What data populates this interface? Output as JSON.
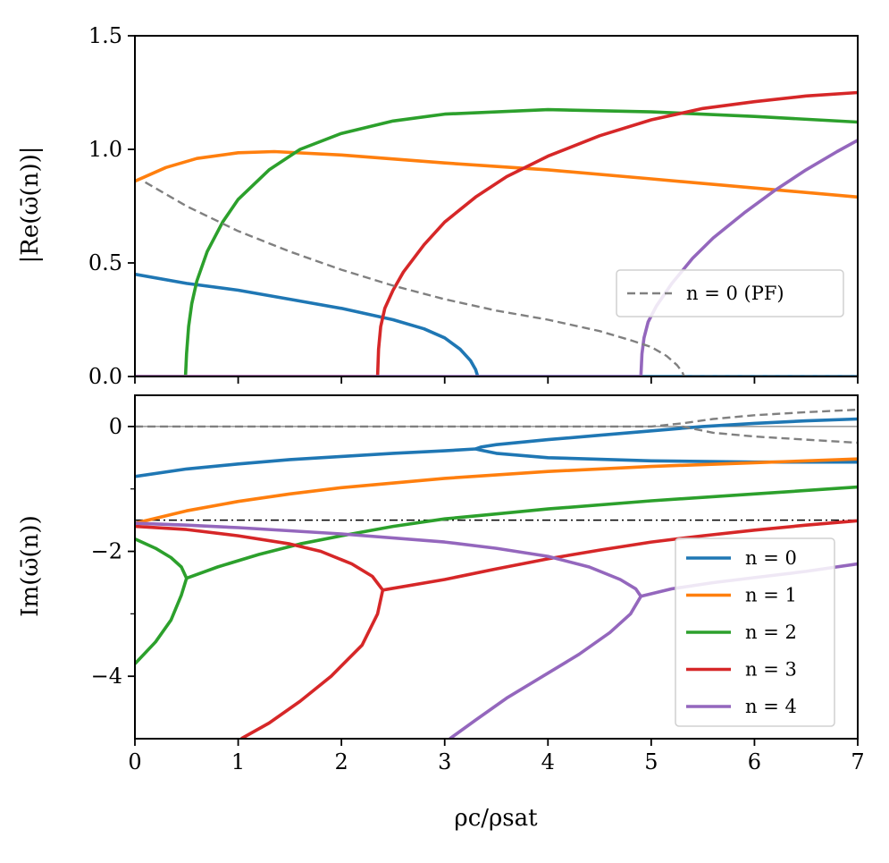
{
  "chart_data": [
    {
      "type": "line",
      "panel": "top",
      "title": "",
      "xlabel": "",
      "ylabel": "|Re(ω̄(n))|",
      "xlim": [
        0,
        7
      ],
      "ylim": [
        0,
        1.5
      ],
      "xticks": [
        0,
        1,
        2,
        3,
        4,
        5,
        6,
        7
      ],
      "yticks": [
        0.0,
        0.5,
        1.0,
        1.5
      ],
      "ytick_labels": [
        "0.0",
        "0.5",
        "1.0",
        "1.5"
      ],
      "grid": false,
      "legend": {
        "placement": "right",
        "entries": [
          "n = 0 (PF)"
        ]
      },
      "series": [
        {
          "color": "#1f77b4",
          "style": "solid",
          "x": [
            0,
            0.5,
            1.0,
            1.5,
            2.0,
            2.5,
            2.8,
            3.0,
            3.15,
            3.25,
            3.3,
            3.32,
            3.35,
            4,
            5,
            6,
            7
          ],
          "y": [
            0.45,
            0.41,
            0.38,
            0.34,
            0.3,
            0.25,
            0.21,
            0.17,
            0.12,
            0.07,
            0.03,
            0.0,
            0.0,
            0.0,
            0.0,
            0.0,
            0.0
          ]
        },
        {
          "color": "#ff7f0e",
          "style": "solid",
          "x": [
            0,
            0.3,
            0.6,
            1.0,
            1.35,
            2.0,
            3.0,
            4.0,
            5.0,
            6.0,
            7.0
          ],
          "y": [
            0.86,
            0.92,
            0.96,
            0.985,
            0.99,
            0.975,
            0.94,
            0.91,
            0.87,
            0.83,
            0.79
          ]
        },
        {
          "color": "#2ca02c",
          "style": "solid",
          "x": [
            0,
            0.49,
            0.5,
            0.52,
            0.55,
            0.6,
            0.7,
            0.85,
            1.0,
            1.3,
            1.6,
            2.0,
            2.5,
            3.0,
            4.0,
            5.0,
            6.0,
            7.0
          ],
          "y": [
            0.0,
            0.0,
            0.1,
            0.22,
            0.32,
            0.42,
            0.55,
            0.68,
            0.78,
            0.91,
            1.0,
            1.07,
            1.125,
            1.155,
            1.175,
            1.165,
            1.145,
            1.12
          ]
        },
        {
          "color": "#d62728",
          "style": "solid",
          "x": [
            0,
            2.35,
            2.36,
            2.38,
            2.42,
            2.5,
            2.6,
            2.8,
            3.0,
            3.3,
            3.6,
            4.0,
            4.5,
            5.0,
            5.5,
            6.0,
            6.5,
            7.0
          ],
          "y": [
            0.0,
            0.0,
            0.12,
            0.22,
            0.3,
            0.38,
            0.46,
            0.58,
            0.68,
            0.79,
            0.88,
            0.97,
            1.06,
            1.13,
            1.18,
            1.21,
            1.235,
            1.25
          ]
        },
        {
          "color": "#9467bd",
          "style": "solid",
          "x": [
            0,
            4.9,
            4.91,
            4.93,
            4.97,
            5.05,
            5.2,
            5.4,
            5.6,
            5.9,
            6.2,
            6.5,
            6.8,
            7.0
          ],
          "y": [
            0.0,
            0.0,
            0.1,
            0.17,
            0.24,
            0.31,
            0.41,
            0.52,
            0.61,
            0.72,
            0.82,
            0.91,
            0.99,
            1.04
          ]
        },
        {
          "name": "n = 0 (PF)",
          "color": "#808080",
          "style": "dashed",
          "x": [
            0.1,
            0.5,
            1.0,
            1.5,
            2.0,
            2.5,
            3.0,
            3.5,
            4.0,
            4.5,
            4.8,
            5.0,
            5.15,
            5.25,
            5.3,
            5.32,
            5.5,
            7.0
          ],
          "y": [
            0.855,
            0.75,
            0.64,
            0.55,
            0.47,
            0.4,
            0.34,
            0.29,
            0.25,
            0.2,
            0.16,
            0.13,
            0.09,
            0.05,
            0.02,
            0.0,
            0.0,
            0.0
          ]
        }
      ]
    },
    {
      "type": "line",
      "panel": "bottom",
      "title": "",
      "xlabel": "ρc/ρsat",
      "ylabel": "Im(ω̄(n))",
      "xlim": [
        0,
        7
      ],
      "ylim": [
        -5,
        0.5
      ],
      "xticks": [
        0,
        1,
        2,
        3,
        4,
        5,
        6,
        7
      ],
      "yticks": [
        0,
        -2,
        -4
      ],
      "ytick_labels": [
        "0",
        "−2",
        "−4"
      ],
      "grid": false,
      "legend": {
        "placement": "lower right",
        "entries": [
          "n = 0",
          "n = 1",
          "n = 2",
          "n = 3",
          "n = 4"
        ]
      },
      "reference_lines": [
        {
          "y": 0,
          "color": "#808080",
          "style": "solid"
        },
        {
          "y": -1.5,
          "color": "#000000",
          "style": "dashdot"
        }
      ],
      "series": [
        {
          "name": "n = 0",
          "color": "#1f77b4",
          "style": "solid",
          "x": [
            0,
            0.5,
            1.0,
            1.5,
            2.0,
            2.5,
            3.0,
            3.3,
            3.35,
            3.5,
            4.0,
            5.0,
            6.0,
            7.0
          ],
          "y": [
            -0.8,
            -0.68,
            -0.6,
            -0.53,
            -0.48,
            -0.43,
            -0.39,
            -0.36,
            -0.38,
            -0.43,
            -0.5,
            -0.55,
            -0.57,
            -0.57
          ]
        },
        {
          "color": "#1f77b4",
          "style": "solid",
          "x": [
            3.3,
            3.35,
            3.5,
            4.0,
            4.5,
            5.0,
            5.5,
            6.0,
            6.5,
            7.0
          ],
          "y": [
            -0.36,
            -0.33,
            -0.29,
            -0.21,
            -0.14,
            -0.07,
            0.0,
            0.05,
            0.09,
            0.12
          ]
        },
        {
          "name": "n = 1",
          "color": "#ff7f0e",
          "style": "solid",
          "x": [
            0,
            0.5,
            1.0,
            1.5,
            2.0,
            3.0,
            4.0,
            5.0,
            6.0,
            7.0
          ],
          "y": [
            -1.55,
            -1.35,
            -1.2,
            -1.08,
            -0.98,
            -0.83,
            -0.72,
            -0.64,
            -0.58,
            -0.52
          ]
        },
        {
          "name": "n = 2",
          "color": "#2ca02c",
          "style": "solid",
          "x": [
            0,
            0.2,
            0.35,
            0.45,
            0.5,
            0.45,
            0.35,
            0.2,
            0.0
          ],
          "y": [
            -1.8,
            -1.95,
            -2.1,
            -2.25,
            -2.43,
            -2.7,
            -3.1,
            -3.45,
            -3.8
          ]
        },
        {
          "color": "#2ca02c",
          "style": "solid",
          "x": [
            0.5,
            0.8,
            1.2,
            1.6,
            2.0,
            2.5,
            3.0,
            3.5,
            4.0,
            5.0,
            6.0,
            7.0
          ],
          "y": [
            -2.43,
            -2.25,
            -2.05,
            -1.88,
            -1.75,
            -1.6,
            -1.48,
            -1.4,
            -1.32,
            -1.19,
            -1.08,
            -0.97
          ]
        },
        {
          "name": "n = 3",
          "color": "#d62728",
          "style": "solid",
          "x": [
            0,
            0.5,
            1.0,
            1.5,
            1.8,
            2.1,
            2.3,
            2.4,
            2.35,
            2.2,
            1.9,
            1.6,
            1.3,
            1.03
          ],
          "y": [
            -1.6,
            -1.65,
            -1.75,
            -1.88,
            -2.0,
            -2.2,
            -2.4,
            -2.62,
            -3.0,
            -3.5,
            -4.0,
            -4.4,
            -4.75,
            -5.0
          ]
        },
        {
          "color": "#d62728",
          "style": "solid",
          "x": [
            2.4,
            3.0,
            3.5,
            4.0,
            4.5,
            5.0,
            5.5,
            6.0,
            6.5,
            7.0
          ],
          "y": [
            -2.62,
            -2.45,
            -2.28,
            -2.12,
            -1.98,
            -1.85,
            -1.75,
            -1.66,
            -1.58,
            -1.51
          ]
        },
        {
          "name": "n = 4",
          "color": "#9467bd",
          "style": "solid",
          "x": [
            0,
            0.5,
            1.0,
            2.0,
            3.0,
            3.5,
            4.0,
            4.4,
            4.7,
            4.85,
            4.9,
            4.8,
            4.6,
            4.3,
            4.0,
            3.6,
            3.3,
            3.05
          ],
          "y": [
            -1.55,
            -1.58,
            -1.62,
            -1.72,
            -1.85,
            -1.95,
            -2.08,
            -2.25,
            -2.45,
            -2.6,
            -2.72,
            -3.0,
            -3.3,
            -3.65,
            -3.95,
            -4.35,
            -4.7,
            -5.0
          ]
        },
        {
          "color": "#9467bd",
          "style": "solid",
          "x": [
            4.9,
            5.2,
            5.6,
            6.0,
            6.5,
            7.0
          ],
          "y": [
            -2.72,
            -2.6,
            -2.5,
            -2.42,
            -2.32,
            -2.2
          ]
        },
        {
          "color": "#808080",
          "style": "dashed",
          "x": [
            0,
            1,
            2,
            3,
            4,
            5.0,
            5.3,
            5.6,
            6.0,
            6.5,
            7.0
          ],
          "y": [
            0,
            0,
            0,
            0,
            0,
            0,
            0.05,
            0.12,
            0.18,
            0.23,
            0.27
          ]
        },
        {
          "color": "#808080",
          "style": "dashed",
          "x": [
            5.3,
            5.6,
            6.0,
            6.5,
            7.0
          ],
          "y": [
            0.0,
            -0.1,
            -0.16,
            -0.21,
            -0.26
          ]
        }
      ]
    }
  ]
}
